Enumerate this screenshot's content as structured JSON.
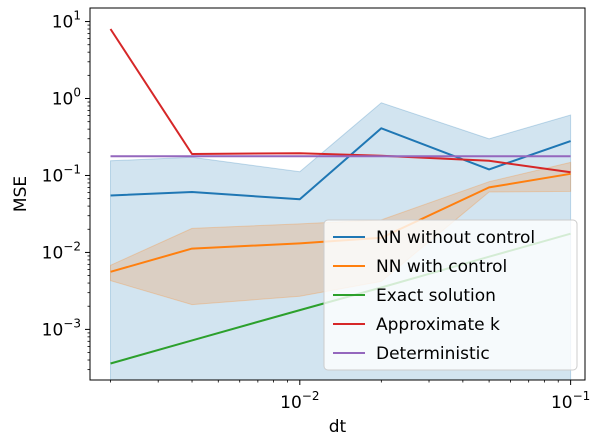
{
  "chart_data": {
    "type": "line",
    "title": "",
    "xlabel": "dt",
    "ylabel": "MSE",
    "xscale": "log",
    "yscale": "log",
    "xlim": [
      0.00168,
      0.113
    ],
    "ylim": [
      0.00022,
      15
    ],
    "x_ticks": [
      {
        "base": "10",
        "exp": "−2",
        "value": 0.01
      },
      {
        "base": "10",
        "exp": "−1",
        "value": 0.1
      }
    ],
    "y_ticks": [
      {
        "base": "10",
        "exp": "−3",
        "value": 0.001
      },
      {
        "base": "10",
        "exp": "−2",
        "value": 0.01
      },
      {
        "base": "10",
        "exp": "−1",
        "value": 0.1
      },
      {
        "base": "10",
        "exp": "0",
        "value": 1
      },
      {
        "base": "10",
        "exp": "1",
        "value": 10
      }
    ],
    "grid": false,
    "legend_position": "lower right",
    "x": [
      0.002,
      0.004,
      0.01,
      0.02,
      0.05,
      0.1
    ],
    "series": [
      {
        "name": "NN without control",
        "color": "#1f77b4",
        "values": [
          0.055,
          0.061,
          0.049,
          0.41,
          0.12,
          0.28
        ],
        "band_lower": [
          0.00022,
          0.00022,
          0.00022,
          0.00022,
          0.00022,
          0.00022
        ],
        "band_upper": [
          0.155,
          0.172,
          0.112,
          0.88,
          0.3,
          0.61
        ]
      },
      {
        "name": "NN with control",
        "color": "#ff7f0e",
        "values": [
          0.0056,
          0.0112,
          0.0131,
          0.0155,
          0.07,
          0.105
        ],
        "band_lower": [
          0.0043,
          0.0021,
          0.0027,
          0.0042,
          0.061,
          0.062
        ],
        "band_upper": [
          0.0068,
          0.0205,
          0.0235,
          0.0265,
          0.083,
          0.148
        ]
      },
      {
        "name": "Exact solution",
        "color": "#2ca02c",
        "values": [
          0.00036,
          0.00072,
          0.00178,
          0.0035,
          0.0088,
          0.0175
        ]
      },
      {
        "name": "Approximate k",
        "color": "#d62728",
        "values": [
          8.0,
          0.19,
          0.195,
          0.18,
          0.155,
          0.11
        ]
      },
      {
        "name": "Deterministic",
        "color": "#9467bd",
        "values": [
          0.178,
          0.178,
          0.178,
          0.178,
          0.178,
          0.178
        ]
      }
    ]
  }
}
